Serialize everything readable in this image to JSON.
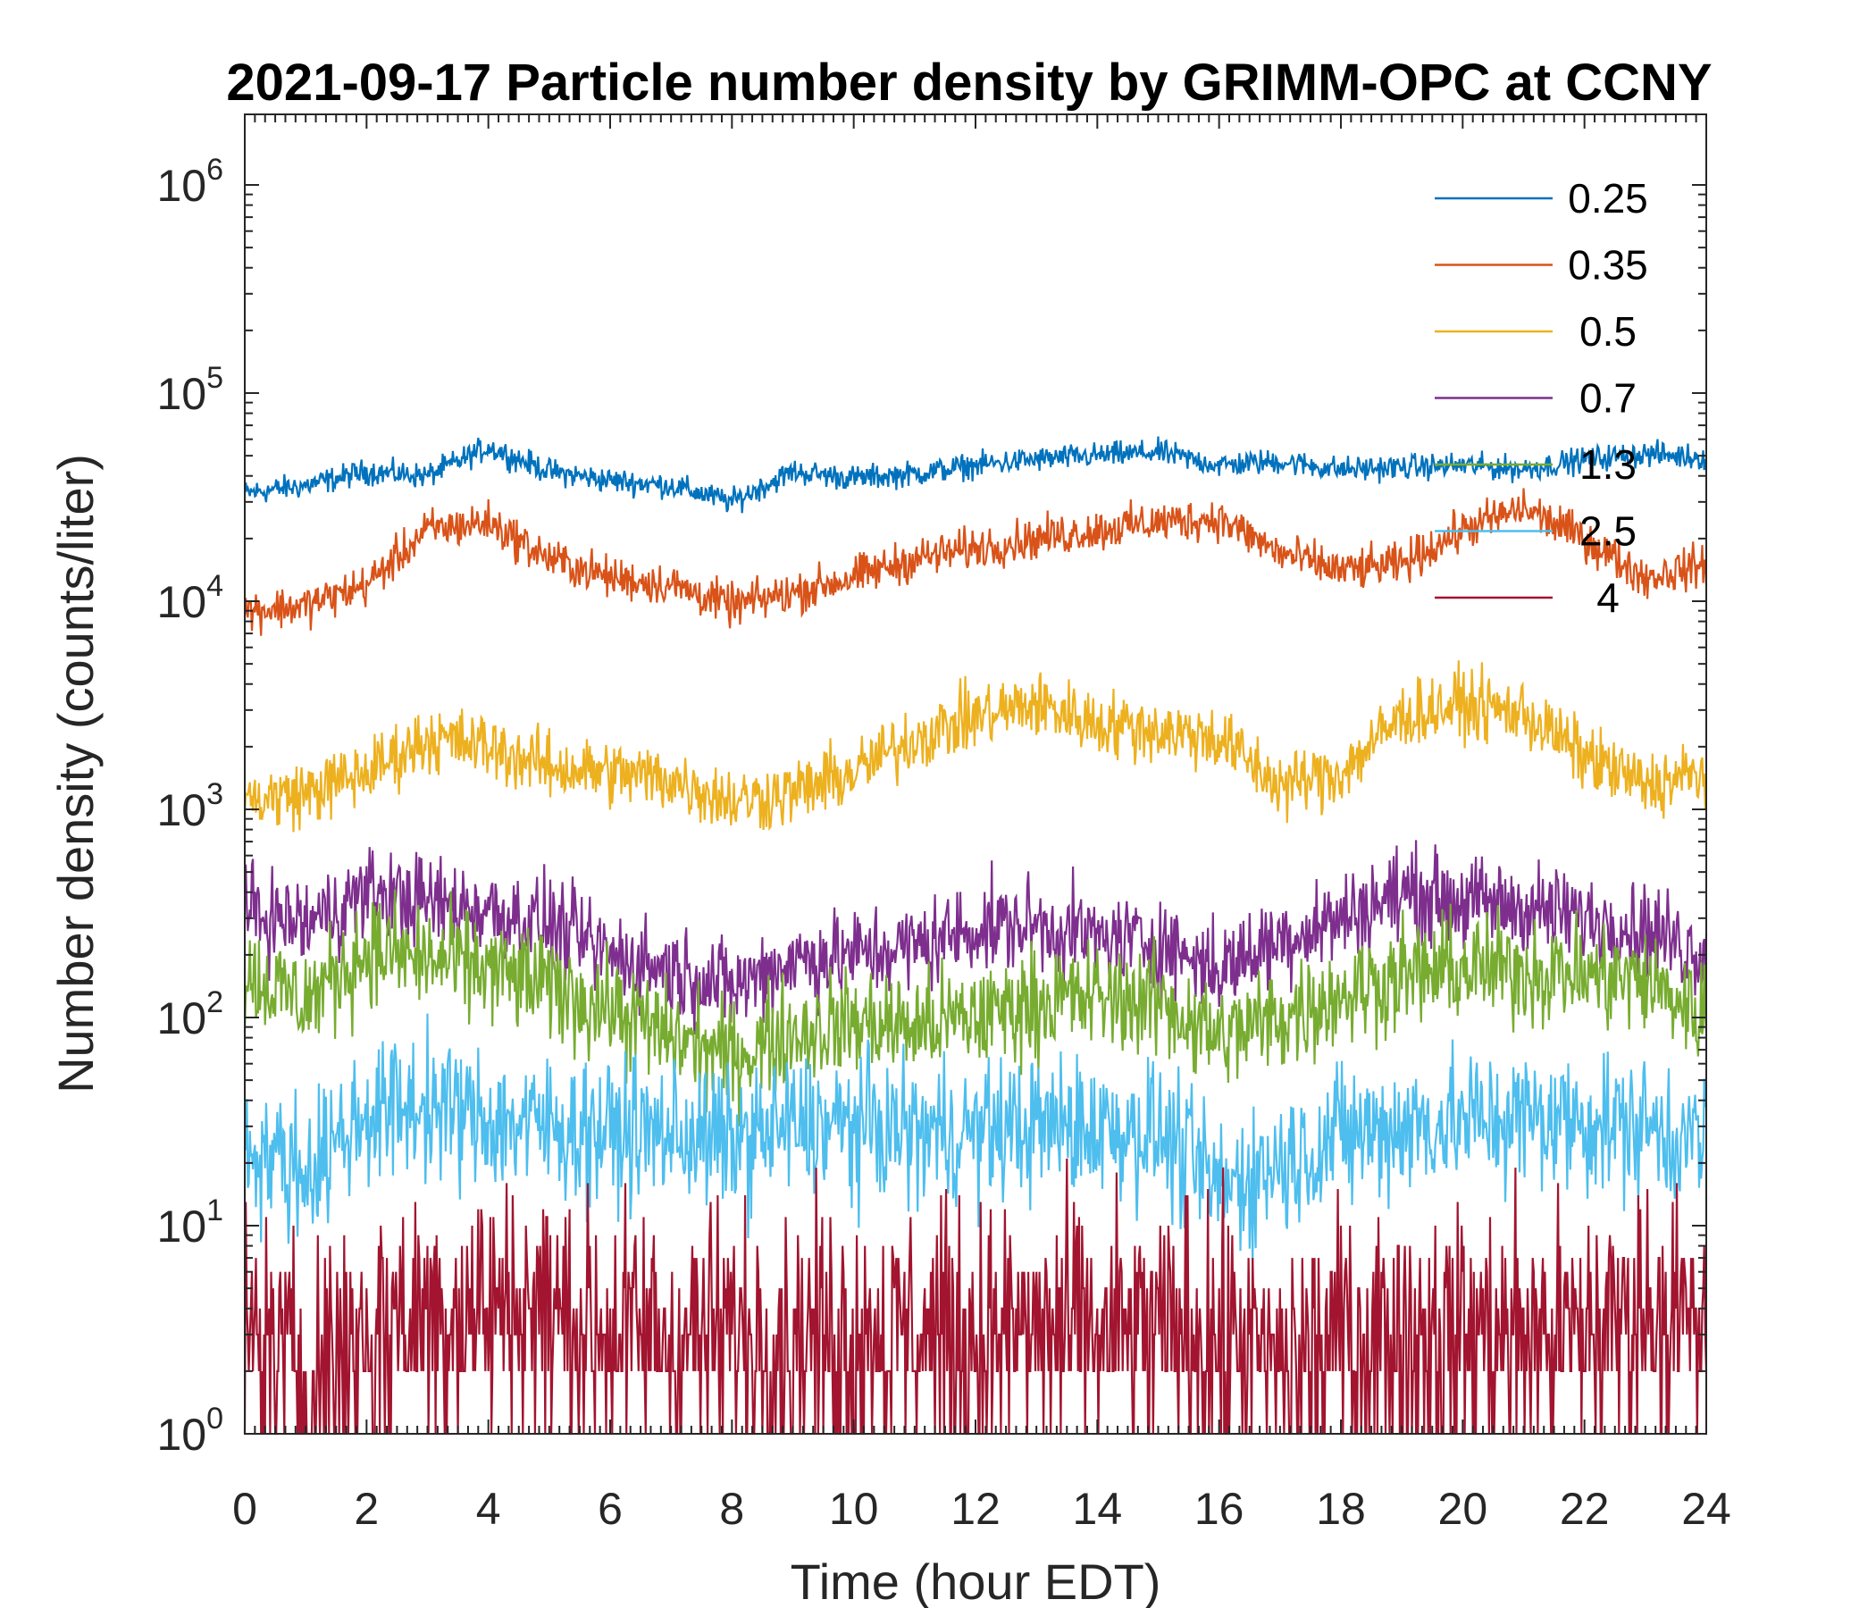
{
  "chart_data": {
    "type": "line",
    "title": "2021-09-17 Particle number density by GRIMM-OPC at CCNY",
    "xlabel": "Time (hour EDT)",
    "ylabel": "Number density (counts/liter)",
    "xlim": [
      0,
      24
    ],
    "ylim": [
      1,
      2000000
    ],
    "yscale": "log",
    "x_ticks": [
      0,
      2,
      4,
      6,
      8,
      10,
      12,
      14,
      16,
      18,
      20,
      22,
      24
    ],
    "y_ticks": [
      {
        "base": "10",
        "exp": "0",
        "value": 1
      },
      {
        "base": "10",
        "exp": "1",
        "value": 10
      },
      {
        "base": "10",
        "exp": "2",
        "value": 100
      },
      {
        "base": "10",
        "exp": "3",
        "value": 1000
      },
      {
        "base": "10",
        "exp": "4",
        "value": 10000
      },
      {
        "base": "10",
        "exp": "5",
        "value": 100000
      },
      {
        "base": "10",
        "exp": "6",
        "value": 1000000
      }
    ],
    "grid": false,
    "legend_position": "top-right",
    "x": [
      0,
      1,
      2,
      3,
      4,
      5,
      6,
      7,
      8,
      9,
      10,
      11,
      12,
      13,
      14,
      15,
      16,
      17,
      18,
      19,
      20,
      21,
      22,
      23,
      24
    ],
    "series": [
      {
        "name": "0.25",
        "color": "#0072BD",
        "noise": 0.03,
        "values": [
          33000,
          36000,
          42000,
          40000,
          55000,
          42000,
          38000,
          36000,
          30000,
          42000,
          39000,
          41000,
          45000,
          48000,
          50000,
          52000,
          45000,
          47000,
          43000,
          44000,
          45000,
          43000,
          48000,
          51000,
          49000
        ]
      },
      {
        "name": "0.35",
        "color": "#D95319",
        "noise": 0.05,
        "values": [
          9000,
          9500,
          12000,
          22000,
          24000,
          16000,
          13000,
          12000,
          9500,
          11000,
          13000,
          16000,
          18000,
          20000,
          22000,
          24000,
          25000,
          17000,
          14000,
          15000,
          22000,
          28000,
          20000,
          13000,
          15000
        ]
      },
      {
        "name": "0.5",
        "color": "#EDB120",
        "noise": 0.08,
        "values": [
          1100,
          1200,
          1500,
          2200,
          2000,
          1600,
          1500,
          1400,
          1100,
          1200,
          1500,
          2200,
          2800,
          3200,
          2600,
          2400,
          2200,
          1300,
          1500,
          2800,
          3200,
          2900,
          1800,
          1300,
          1500
        ]
      },
      {
        "name": "0.7",
        "color": "#7E2F8E",
        "noise": 0.11,
        "values": [
          320,
          280,
          400,
          360,
          330,
          280,
          200,
          170,
          140,
          190,
          200,
          220,
          270,
          280,
          240,
          230,
          170,
          240,
          300,
          400,
          360,
          340,
          300,
          270,
          200
        ]
      },
      {
        "name": "1.3",
        "color": "#77AC30",
        "noise": 0.13,
        "values": [
          160,
          120,
          210,
          190,
          170,
          140,
          110,
          80,
          65,
          85,
          95,
          90,
          100,
          120,
          125,
          120,
          80,
          100,
          130,
          160,
          170,
          170,
          160,
          150,
          100
        ]
      },
      {
        "name": "2.5",
        "color": "#4DBEEE",
        "noise": 0.17,
        "values": [
          25,
          18,
          35,
          38,
          32,
          30,
          28,
          28,
          25,
          30,
          30,
          28,
          28,
          30,
          30,
          28,
          15,
          20,
          27,
          30,
          32,
          33,
          32,
          30,
          25
        ]
      },
      {
        "name": "4",
        "color": "#A2142F",
        "noise": 0.3,
        "values": [
          3,
          2,
          3,
          4,
          4,
          4,
          3,
          3,
          3,
          3,
          3,
          3,
          3,
          3,
          3,
          3,
          3,
          2,
          3,
          3,
          3,
          3,
          3,
          4,
          3
        ]
      }
    ]
  }
}
